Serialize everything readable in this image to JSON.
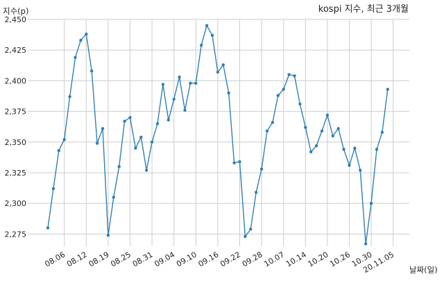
{
  "chart_data": {
    "type": "line",
    "title": "kospi 지수, 최근 3개월",
    "xlabel": "날짜(일)",
    "ylabel": "지수(p)",
    "ylim": [
      2265,
      2450
    ],
    "yticks": [
      2275,
      2300,
      2325,
      2350,
      2375,
      2400,
      2425,
      2450
    ],
    "ytick_labels": [
      "2,275",
      "2,300",
      "2,325",
      "2,350",
      "2,375",
      "2,400",
      "2,425",
      "2,450"
    ],
    "xtick_labels": [
      "08.06",
      "08.12",
      "08.19",
      "08.25",
      "08.31",
      "09.04",
      "09.10",
      "09.16",
      "09.22",
      "09.28",
      "10.07",
      "10.14",
      "10.20",
      "10.26",
      "10.30",
      "20.11.05"
    ],
    "xtick_index": [
      3,
      7,
      11,
      15,
      19,
      23,
      27,
      31,
      35,
      39,
      43,
      47,
      51,
      55,
      59,
      63
    ],
    "grid": true,
    "color": "#2f7fb4",
    "series": [
      {
        "name": "",
        "values": [
          2280,
          2312,
          2343,
          2352,
          2387,
          2419,
          2433,
          2438,
          2408,
          2349,
          2361,
          2274,
          2305,
          2330,
          2367,
          2370,
          2345,
          2354,
          2327,
          2350,
          2365,
          2397,
          2368,
          2385,
          2403,
          2376,
          2398,
          2398,
          2429,
          2445,
          2437,
          2407,
          2413,
          2390,
          2333,
          2334,
          2273,
          2279,
          2309,
          2328,
          2359,
          2366,
          2388,
          2393,
          2405,
          2404,
          2381,
          2362,
          2342,
          2347,
          2359,
          2372,
          2355,
          2361,
          2344,
          2331,
          2345,
          2327,
          2267,
          2300,
          2344,
          2358,
          2393
        ]
      }
    ]
  }
}
